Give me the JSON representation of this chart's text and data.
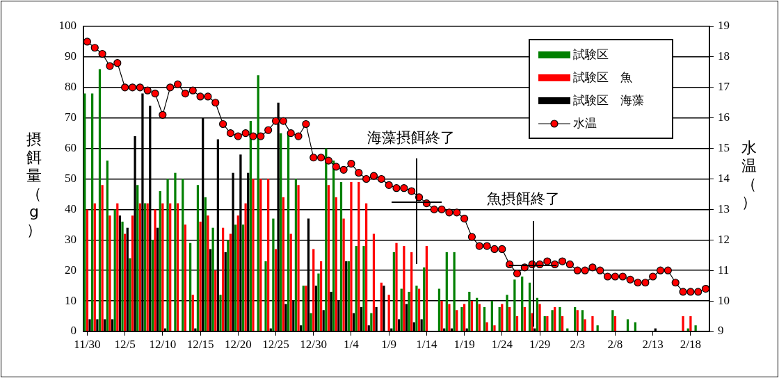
{
  "chart_data": {
    "type": "bar",
    "ylabel": "摂餌量（g）",
    "y2label": "水温（）",
    "categories": [
      "11/30",
      null,
      null,
      null,
      null,
      "12/5",
      null,
      null,
      null,
      null,
      "12/10",
      null,
      null,
      null,
      null,
      "12/15",
      null,
      null,
      null,
      null,
      "12/20",
      null,
      null,
      null,
      null,
      "12/25",
      null,
      null,
      null,
      null,
      "12/30",
      null,
      null,
      null,
      null,
      "1/4",
      null,
      null,
      null,
      null,
      "1/9",
      null,
      null,
      null,
      null,
      "1/14",
      null,
      null,
      null,
      null,
      "1/19",
      null,
      null,
      null,
      null,
      "1/24",
      null,
      null,
      null,
      null,
      "1/29",
      null,
      null,
      null,
      null,
      "2/3",
      null,
      null,
      null,
      null,
      "2/8",
      null,
      null,
      null,
      null,
      "2/13",
      null,
      null,
      null,
      null,
      "2/18",
      null,
      null
    ],
    "series": [
      {
        "name": "試験区",
        "color": "#008000",
        "values": [
          78,
          78,
          86,
          56,
          40,
          36,
          24,
          48,
          42,
          30,
          46,
          50,
          52,
          50,
          29,
          48,
          44,
          34,
          12,
          30,
          35,
          35,
          69,
          84,
          23,
          37,
          65,
          65,
          50,
          15,
          6,
          19,
          60,
          56,
          49,
          23,
          28,
          28,
          6,
          null,
          null,
          26,
          14,
          13,
          15,
          21,
          null,
          14,
          26,
          26,
          8,
          13,
          11,
          8,
          10,
          8,
          12,
          17,
          18,
          16,
          11,
          5,
          7,
          8,
          1,
          8,
          7,
          null,
          2,
          null,
          7,
          null,
          4,
          3,
          null,
          null,
          null,
          null,
          null,
          null,
          1,
          2,
          null
        ]
      },
      {
        "name": "試験区　魚",
        "color": "#ff0000",
        "values": [
          40,
          42,
          48,
          38,
          42,
          32,
          38,
          42,
          42,
          40,
          42,
          42,
          42,
          35,
          12,
          36,
          38,
          20,
          34,
          32,
          38,
          42,
          50,
          50,
          50,
          27,
          44,
          32,
          48,
          15,
          27,
          23,
          48,
          44,
          37,
          49,
          49,
          42,
          32,
          16,
          12,
          29,
          28,
          26,
          14,
          28,
          null,
          10,
          9,
          7,
          9,
          10,
          9,
          3,
          2,
          9,
          8,
          5,
          8,
          6,
          9,
          5,
          8,
          5,
          null,
          7,
          4,
          5,
          null,
          null,
          5,
          null,
          null,
          null,
          null,
          null,
          null,
          null,
          null,
          5,
          5,
          null,
          null
        ]
      },
      {
        "name": "試験区　海藻",
        "color": "#000000",
        "values": [
          4,
          4,
          4,
          4,
          38,
          34,
          64,
          78,
          74,
          34,
          1,
          null,
          null,
          null,
          1,
          70,
          27,
          63,
          26,
          52,
          58,
          52,
          null,
          null,
          1,
          75,
          9,
          10,
          2,
          37,
          15,
          7,
          13,
          10,
          23,
          6,
          8,
          2,
          8,
          15,
          1,
          4,
          9,
          3,
          4,
          null,
          null,
          1,
          1,
          null,
          1,
          null,
          null,
          null,
          null,
          null,
          null,
          null,
          null,
          1,
          null,
          null,
          null,
          null,
          null,
          null,
          null,
          null,
          null,
          null,
          null,
          null,
          null,
          null,
          null,
          1,
          null,
          null,
          null,
          null,
          null,
          null,
          null
        ]
      },
      {
        "name": "水温",
        "type": "line",
        "axis": "y2",
        "color": "#ff0000",
        "values": [
          18.5,
          18.3,
          18.1,
          17.7,
          17.8,
          17.0,
          17.0,
          17.0,
          16.9,
          16.8,
          16.1,
          17.0,
          17.1,
          16.8,
          16.9,
          16.7,
          16.7,
          16.5,
          15.8,
          15.5,
          15.4,
          15.5,
          15.4,
          15.4,
          15.6,
          15.9,
          15.9,
          15.5,
          15.4,
          15.8,
          14.7,
          14.7,
          14.6,
          14.4,
          14.3,
          14.5,
          14.2,
          14.0,
          14.1,
          14.0,
          13.8,
          13.7,
          13.7,
          13.6,
          13.4,
          13.2,
          13.0,
          13.0,
          12.9,
          12.9,
          12.7,
          12.1,
          11.8,
          11.8,
          11.7,
          11.7,
          11.2,
          10.9,
          11.1,
          11.2,
          11.2,
          11.3,
          11.2,
          11.3,
          11.2,
          11.0,
          11.0,
          11.1,
          11.0,
          10.8,
          10.8,
          10.8,
          10.7,
          10.6,
          10.6,
          10.8,
          11.0,
          11.0,
          10.6,
          10.3,
          10.3,
          10.3,
          10.4
        ]
      }
    ],
    "ylim": [
      0,
      100
    ],
    "yticks": [
      0,
      10,
      20,
      30,
      40,
      50,
      60,
      70,
      80,
      90,
      100
    ],
    "y2lim": [
      9,
      19
    ],
    "y2ticks": [
      9,
      10,
      11,
      12,
      13,
      14,
      15,
      16,
      17,
      18,
      19
    ],
    "grid": "y",
    "legend": "top right",
    "marker": "circle",
    "line_style": "solid",
    "annotations": [
      "海藻摂餌終了",
      "魚摂餌終了"
    ]
  }
}
